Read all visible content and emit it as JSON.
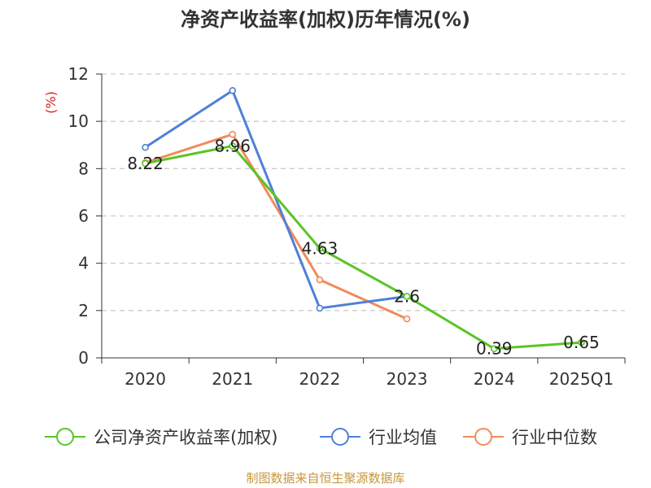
{
  "title": "净资产收益率(加权)历年情况(%)",
  "source": "制图数据来自恒生聚源数据库",
  "colors": {
    "title": "#333333",
    "source": "#c8963c",
    "ylabel": "#d32020",
    "grid": "#cccccc",
    "axis": "#333333"
  },
  "chart_data": {
    "type": "line",
    "title": "净资产收益率(加权)历年情况(%)",
    "xlabel": "",
    "ylabel": "(%)",
    "categories": [
      "2020",
      "2021",
      "2022",
      "2023",
      "2024",
      "2025Q1"
    ],
    "ylim": [
      0,
      12
    ],
    "yticks": [
      0,
      2,
      4,
      6,
      8,
      10,
      12
    ],
    "grid": true,
    "legend_position": "bottom",
    "series": [
      {
        "name": "公司净资产收益率(加权)",
        "color": "#5bc425",
        "values": [
          8.22,
          8.96,
          4.63,
          2.6,
          0.39,
          0.65
        ],
        "labels": [
          "8.22",
          "8.96",
          "4.63",
          "2.6",
          "0.39",
          "0.65"
        ]
      },
      {
        "name": "行业均值",
        "color": "#4e80d8",
        "values": [
          8.9,
          11.3,
          2.1,
          2.6,
          null,
          null
        ],
        "labels": []
      },
      {
        "name": "行业中位数",
        "color": "#f08c5a",
        "values": [
          8.25,
          9.45,
          3.3,
          1.65,
          null,
          null
        ],
        "labels": []
      }
    ]
  }
}
